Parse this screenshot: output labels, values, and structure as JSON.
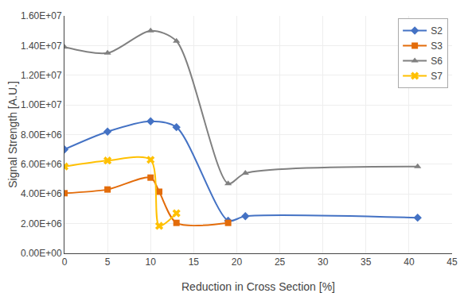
{
  "chart_data": {
    "type": "line",
    "xlabel": "Reduction in Cross Section [%]",
    "ylabel": "Signal Strength [A.U.]",
    "xlim": [
      0,
      45
    ],
    "ylim": [
      0,
      16000000.0
    ],
    "xticks": [
      0,
      5,
      10,
      15,
      20,
      25,
      30,
      35,
      40,
      45
    ],
    "yticks": [
      {
        "value": 0,
        "label": "0.00E+00"
      },
      {
        "value": 2000000,
        "label": "2.00E+06"
      },
      {
        "value": 4000000,
        "label": "4.00E+06"
      },
      {
        "value": 6000000,
        "label": "6.00E+06"
      },
      {
        "value": 8000000,
        "label": "8.00E+06"
      },
      {
        "value": 10000000,
        "label": "1.00E+07"
      },
      {
        "value": 12000000,
        "label": "1.20E+07"
      },
      {
        "value": 14000000,
        "label": "1.40E+07"
      },
      {
        "value": 16000000,
        "label": "1.60E+07"
      }
    ],
    "grid": true,
    "legend": "upper right",
    "series": [
      {
        "name": "S2",
        "color": "#4472C4",
        "marker": "diamond",
        "x": [
          0,
          5,
          10,
          13,
          19,
          21,
          41
        ],
        "values": [
          7000000.0,
          8200000.0,
          8900000.0,
          8500000.0,
          2200000.0,
          2500000.0,
          2400000.0
        ]
      },
      {
        "name": "S3",
        "color": "#E36C0A",
        "marker": "square",
        "x": [
          0,
          5,
          10,
          11,
          13,
          19
        ],
        "values": [
          4050000.0,
          4300000.0,
          5100000.0,
          4150000.0,
          2050000.0,
          2050000.0
        ]
      },
      {
        "name": "S6",
        "color": "#808080",
        "marker": "triangle-up",
        "x": [
          0,
          5,
          10,
          13,
          19,
          21,
          41
        ],
        "values": [
          13900000.0,
          13500000.0,
          15000000.0,
          14300000.0,
          4700000.0,
          5400000.0,
          5850000.0
        ]
      },
      {
        "name": "S7",
        "color": "#FFC000",
        "marker": "x",
        "x": [
          0,
          5,
          10,
          11,
          13
        ],
        "values": [
          5850000.0,
          6250000.0,
          6300000.0,
          1850000.0,
          2700000.0
        ]
      }
    ]
  }
}
